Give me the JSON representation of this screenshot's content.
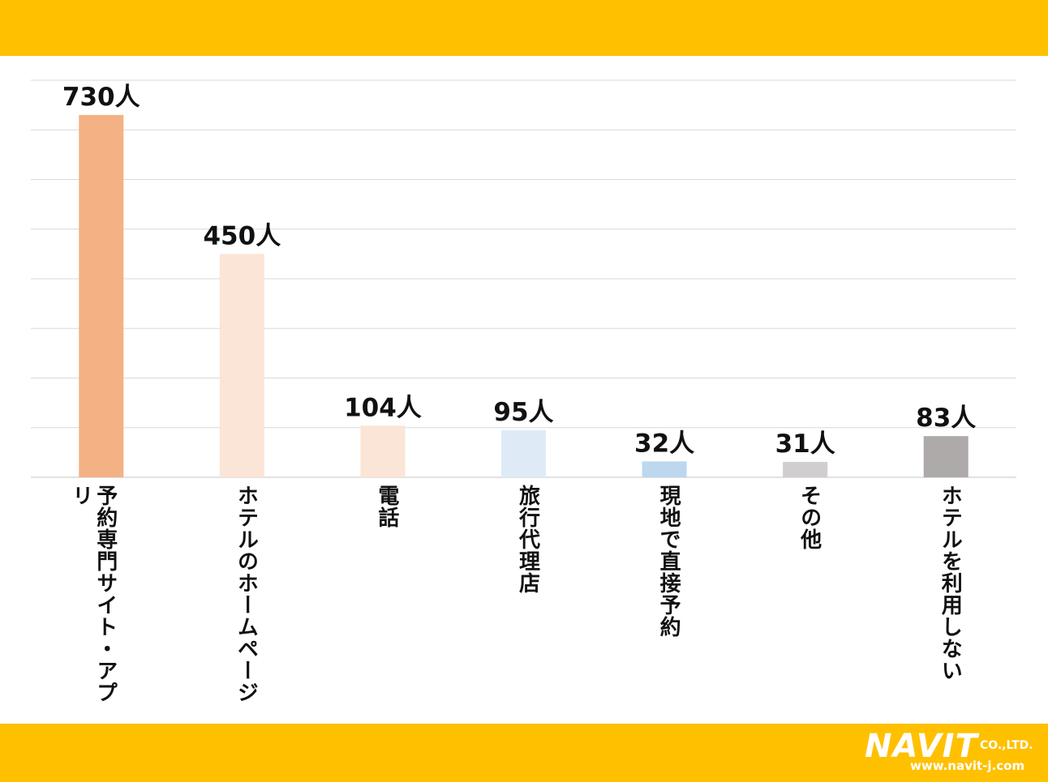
{
  "chart_data": {
    "type": "bar",
    "categories": [
      "予約専門サイト・アプリ",
      "ホテルのホームページ",
      "電話",
      "旅行代理店",
      "現地で直接予約",
      "その他",
      "ホテルを利用しない"
    ],
    "values": [
      730,
      450,
      104,
      95,
      32,
      31,
      83
    ],
    "value_labels": [
      "730人",
      "450人",
      "104人",
      "95人",
      "32人",
      "31人",
      "83人"
    ],
    "ylim": [
      0,
      800
    ],
    "grid": true,
    "bar_colors": [
      "#f4b183",
      "#fbe5d6",
      "#fbe5d6",
      "#deebf7",
      "#bdd7ee",
      "#d0cece",
      "#aeaaaa"
    ]
  },
  "brand": {
    "name": "NAVIT",
    "suffix": "CO.,LTD.",
    "url": "www.navit-j.com"
  },
  "colors": {
    "band": "#ffc000",
    "grid": "#d9d9d9",
    "axis": "#d9d9d9"
  }
}
